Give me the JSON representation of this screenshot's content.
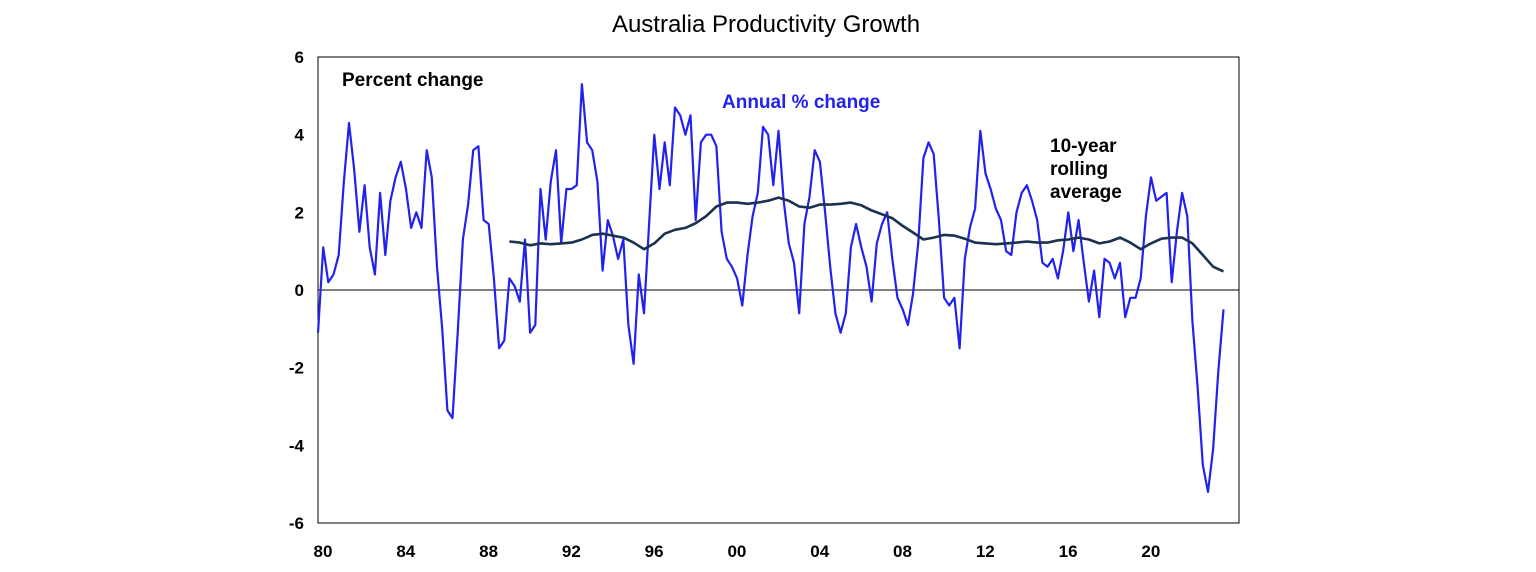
{
  "chart_data": {
    "type": "line",
    "title": "Australia Productivity Growth",
    "ylabel": "Percent change",
    "xlabel": "",
    "xlim": [
      1980,
      2024.5
    ],
    "ylim": [
      -6,
      6
    ],
    "x_tick_labels": [
      "80",
      "84",
      "88",
      "92",
      "96",
      "00",
      "04",
      "08",
      "12",
      "16",
      "20"
    ],
    "x_tick_values": [
      1980,
      1984,
      1988,
      1992,
      1996,
      2000,
      2004,
      2008,
      2012,
      2016,
      2020
    ],
    "y_ticks": [
      -6,
      -4,
      -2,
      0,
      2,
      4,
      6
    ],
    "grid": false,
    "zero_line": true,
    "legend": "inline-labels",
    "series": [
      {
        "name": "Annual % change",
        "color": "#2222ee",
        "points": [
          [
            1980.0,
            -1.1
          ],
          [
            1980.25,
            1.1
          ],
          [
            1980.5,
            0.2
          ],
          [
            1980.75,
            0.4
          ],
          [
            1981.0,
            0.9
          ],
          [
            1981.25,
            2.8
          ],
          [
            1981.5,
            4.3
          ],
          [
            1981.75,
            3.1
          ],
          [
            1982.0,
            1.5
          ],
          [
            1982.25,
            2.7
          ],
          [
            1982.5,
            1.1
          ],
          [
            1982.75,
            0.4
          ],
          [
            1983.0,
            2.5
          ],
          [
            1983.25,
            0.9
          ],
          [
            1983.5,
            2.3
          ],
          [
            1983.75,
            2.9
          ],
          [
            1984.0,
            3.3
          ],
          [
            1984.25,
            2.6
          ],
          [
            1984.5,
            1.6
          ],
          [
            1984.75,
            2.0
          ],
          [
            1985.0,
            1.6
          ],
          [
            1985.25,
            3.6
          ],
          [
            1985.5,
            2.9
          ],
          [
            1985.75,
            0.6
          ],
          [
            1986.0,
            -1.0
          ],
          [
            1986.25,
            -3.1
          ],
          [
            1986.5,
            -3.3
          ],
          [
            1986.75,
            -1.1
          ],
          [
            1987.0,
            1.3
          ],
          [
            1987.25,
            2.2
          ],
          [
            1987.5,
            3.6
          ],
          [
            1987.75,
            3.7
          ],
          [
            1988.0,
            1.8
          ],
          [
            1988.25,
            1.7
          ],
          [
            1988.5,
            0.3
          ],
          [
            1988.75,
            -1.5
          ],
          [
            1989.0,
            -1.3
          ],
          [
            1989.25,
            0.3
          ],
          [
            1989.5,
            0.1
          ],
          [
            1989.75,
            -0.3
          ],
          [
            1990.0,
            1.3
          ],
          [
            1990.25,
            -1.1
          ],
          [
            1990.5,
            -0.9
          ],
          [
            1990.75,
            2.6
          ],
          [
            1991.0,
            1.3
          ],
          [
            1991.25,
            2.8
          ],
          [
            1991.5,
            3.6
          ],
          [
            1991.75,
            1.2
          ],
          [
            1992.0,
            2.6
          ],
          [
            1992.25,
            2.6
          ],
          [
            1992.5,
            2.7
          ],
          [
            1992.75,
            5.3
          ],
          [
            1993.0,
            3.8
          ],
          [
            1993.25,
            3.6
          ],
          [
            1993.5,
            2.8
          ],
          [
            1993.75,
            0.5
          ],
          [
            1994.0,
            1.8
          ],
          [
            1994.25,
            1.4
          ],
          [
            1994.5,
            0.8
          ],
          [
            1994.75,
            1.3
          ],
          [
            1995.0,
            -0.9
          ],
          [
            1995.25,
            -1.9
          ],
          [
            1995.5,
            0.4
          ],
          [
            1995.75,
            -0.6
          ],
          [
            1996.0,
            1.7
          ],
          [
            1996.25,
            4.0
          ],
          [
            1996.5,
            2.6
          ],
          [
            1996.75,
            3.8
          ],
          [
            1997.0,
            2.7
          ],
          [
            1997.25,
            4.7
          ],
          [
            1997.5,
            4.5
          ],
          [
            1997.75,
            4.0
          ],
          [
            1998.0,
            4.5
          ],
          [
            1998.25,
            1.8
          ],
          [
            1998.5,
            3.8
          ],
          [
            1998.75,
            4.0
          ],
          [
            1999.0,
            4.0
          ],
          [
            1999.25,
            3.7
          ],
          [
            1999.5,
            1.5
          ],
          [
            1999.75,
            0.8
          ],
          [
            2000.0,
            0.6
          ],
          [
            2000.25,
            0.3
          ],
          [
            2000.5,
            -0.4
          ],
          [
            2000.75,
            0.9
          ],
          [
            2001.0,
            1.9
          ],
          [
            2001.25,
            2.5
          ],
          [
            2001.5,
            4.2
          ],
          [
            2001.75,
            4.0
          ],
          [
            2002.0,
            2.7
          ],
          [
            2002.25,
            4.1
          ],
          [
            2002.5,
            2.3
          ],
          [
            2002.75,
            1.2
          ],
          [
            2003.0,
            0.7
          ],
          [
            2003.25,
            -0.6
          ],
          [
            2003.5,
            1.7
          ],
          [
            2003.75,
            2.4
          ],
          [
            2004.0,
            3.6
          ],
          [
            2004.25,
            3.3
          ],
          [
            2004.5,
            2.0
          ],
          [
            2004.75,
            0.6
          ],
          [
            2005.0,
            -0.6
          ],
          [
            2005.25,
            -1.1
          ],
          [
            2005.5,
            -0.6
          ],
          [
            2005.75,
            1.1
          ],
          [
            2006.0,
            1.7
          ],
          [
            2006.25,
            1.1
          ],
          [
            2006.5,
            0.6
          ],
          [
            2006.75,
            -0.3
          ],
          [
            2007.0,
            1.2
          ],
          [
            2007.25,
            1.7
          ],
          [
            2007.5,
            2.0
          ],
          [
            2007.75,
            0.8
          ],
          [
            2008.0,
            -0.2
          ],
          [
            2008.25,
            -0.5
          ],
          [
            2008.5,
            -0.9
          ],
          [
            2008.75,
            -0.1
          ],
          [
            2009.0,
            1.2
          ],
          [
            2009.25,
            3.4
          ],
          [
            2009.5,
            3.8
          ],
          [
            2009.75,
            3.5
          ],
          [
            2010.0,
            1.8
          ],
          [
            2010.25,
            -0.2
          ],
          [
            2010.5,
            -0.4
          ],
          [
            2010.75,
            -0.2
          ],
          [
            2011.0,
            -1.5
          ],
          [
            2011.25,
            0.8
          ],
          [
            2011.5,
            1.6
          ],
          [
            2011.75,
            2.1
          ],
          [
            2012.0,
            4.1
          ],
          [
            2012.25,
            3.0
          ],
          [
            2012.5,
            2.6
          ],
          [
            2012.75,
            2.1
          ],
          [
            2013.0,
            1.8
          ],
          [
            2013.25,
            1.0
          ],
          [
            2013.5,
            0.9
          ],
          [
            2013.75,
            2.0
          ],
          [
            2014.0,
            2.5
          ],
          [
            2014.25,
            2.7
          ],
          [
            2014.5,
            2.3
          ],
          [
            2014.75,
            1.8
          ],
          [
            2015.0,
            0.7
          ],
          [
            2015.25,
            0.6
          ],
          [
            2015.5,
            0.8
          ],
          [
            2015.75,
            0.3
          ],
          [
            2016.0,
            1.0
          ],
          [
            2016.25,
            2.0
          ],
          [
            2016.5,
            1.0
          ],
          [
            2016.75,
            1.8
          ],
          [
            2017.0,
            0.7
          ],
          [
            2017.25,
            -0.3
          ],
          [
            2017.5,
            0.5
          ],
          [
            2017.75,
            -0.7
          ],
          [
            2018.0,
            0.8
          ],
          [
            2018.25,
            0.7
          ],
          [
            2018.5,
            0.3
          ],
          [
            2018.75,
            0.7
          ],
          [
            2019.0,
            -0.7
          ],
          [
            2019.25,
            -0.2
          ],
          [
            2019.5,
            -0.2
          ],
          [
            2019.75,
            0.3
          ],
          [
            2020.0,
            1.9
          ],
          [
            2020.25,
            2.9
          ],
          [
            2020.5,
            2.3
          ],
          [
            2020.75,
            2.4
          ],
          [
            2021.0,
            2.5
          ],
          [
            2021.25,
            0.2
          ],
          [
            2021.5,
            1.5
          ],
          [
            2021.75,
            2.5
          ],
          [
            2022.0,
            1.9
          ],
          [
            2022.25,
            -0.8
          ],
          [
            2022.5,
            -2.5
          ],
          [
            2022.75,
            -4.5
          ],
          [
            2023.0,
            -5.2
          ],
          [
            2023.25,
            -4.1
          ],
          [
            2023.5,
            -2.1
          ],
          [
            2023.75,
            -0.5
          ]
        ]
      },
      {
        "name": "10-year rolling average",
        "color": "#1a3150",
        "points": [
          [
            1989.25,
            1.25
          ],
          [
            1989.75,
            1.22
          ],
          [
            1990.25,
            1.15
          ],
          [
            1990.75,
            1.2
          ],
          [
            1991.25,
            1.18
          ],
          [
            1991.75,
            1.2
          ],
          [
            1992.25,
            1.22
          ],
          [
            1992.75,
            1.3
          ],
          [
            1993.25,
            1.42
          ],
          [
            1993.75,
            1.45
          ],
          [
            1994.25,
            1.4
          ],
          [
            1994.75,
            1.35
          ],
          [
            1995.25,
            1.22
          ],
          [
            1995.75,
            1.05
          ],
          [
            1996.25,
            1.2
          ],
          [
            1996.75,
            1.45
          ],
          [
            1997.25,
            1.55
          ],
          [
            1997.75,
            1.6
          ],
          [
            1998.25,
            1.72
          ],
          [
            1998.75,
            1.9
          ],
          [
            1999.25,
            2.15
          ],
          [
            1999.75,
            2.25
          ],
          [
            2000.25,
            2.25
          ],
          [
            2000.75,
            2.22
          ],
          [
            2001.25,
            2.25
          ],
          [
            2001.75,
            2.3
          ],
          [
            2002.25,
            2.38
          ],
          [
            2002.75,
            2.3
          ],
          [
            2003.25,
            2.15
          ],
          [
            2003.75,
            2.12
          ],
          [
            2004.25,
            2.2
          ],
          [
            2004.75,
            2.2
          ],
          [
            2005.25,
            2.22
          ],
          [
            2005.75,
            2.25
          ],
          [
            2006.25,
            2.18
          ],
          [
            2006.75,
            2.05
          ],
          [
            2007.25,
            1.95
          ],
          [
            2007.75,
            1.85
          ],
          [
            2008.25,
            1.65
          ],
          [
            2008.75,
            1.48
          ],
          [
            2009.25,
            1.3
          ],
          [
            2009.75,
            1.35
          ],
          [
            2010.25,
            1.42
          ],
          [
            2010.75,
            1.4
          ],
          [
            2011.25,
            1.32
          ],
          [
            2011.75,
            1.22
          ],
          [
            2012.25,
            1.2
          ],
          [
            2012.75,
            1.18
          ],
          [
            2013.25,
            1.2
          ],
          [
            2013.75,
            1.22
          ],
          [
            2014.25,
            1.25
          ],
          [
            2014.75,
            1.22
          ],
          [
            2015.25,
            1.22
          ],
          [
            2015.75,
            1.28
          ],
          [
            2016.25,
            1.3
          ],
          [
            2016.75,
            1.35
          ],
          [
            2017.25,
            1.3
          ],
          [
            2017.75,
            1.2
          ],
          [
            2018.25,
            1.25
          ],
          [
            2018.75,
            1.35
          ],
          [
            2019.25,
            1.22
          ],
          [
            2019.75,
            1.05
          ],
          [
            2020.25,
            1.2
          ],
          [
            2020.75,
            1.32
          ],
          [
            2021.25,
            1.35
          ],
          [
            2021.75,
            1.35
          ],
          [
            2022.25,
            1.2
          ],
          [
            2022.75,
            0.9
          ],
          [
            2023.25,
            0.6
          ],
          [
            2023.75,
            0.48
          ]
        ]
      }
    ],
    "annotations": [
      {
        "text": "Percent change",
        "color": "#000000"
      },
      {
        "text": "Annual % change",
        "color": "#2222ee"
      },
      {
        "text_lines": [
          "10-year",
          "rolling",
          "average"
        ],
        "color": "#000000"
      }
    ]
  }
}
